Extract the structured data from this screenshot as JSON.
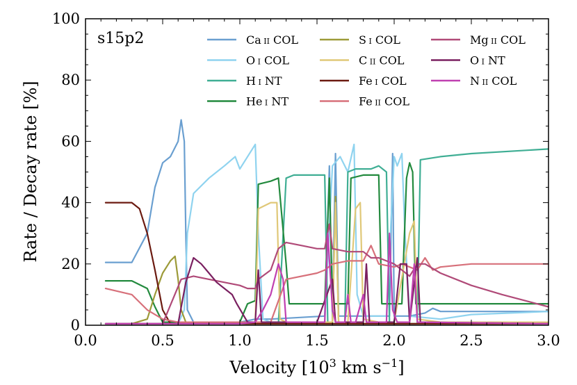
{
  "chart_data": {
    "type": "line",
    "model_label": "s15p2",
    "xlabel": "Velocity [10³ km s⁻¹]",
    "ylabel": "Rate / Decay rate [%]",
    "xlim": [
      0.0,
      3.0
    ],
    "ylim": [
      0,
      100
    ],
    "x_ticks": [
      "0.0",
      "0.5",
      "1.0",
      "1.5",
      "2.0",
      "2.5",
      "3.0"
    ],
    "y_ticks": [
      "0",
      "20",
      "40",
      "60",
      "80",
      "100"
    ],
    "legend_position": "top",
    "series": [
      {
        "name": "Ca II COL",
        "color": "#6a9fd0",
        "points": [
          [
            0.13,
            20.5
          ],
          [
            0.3,
            20.5
          ],
          [
            0.4,
            30
          ],
          [
            0.45,
            45
          ],
          [
            0.5,
            53
          ],
          [
            0.55,
            55
          ],
          [
            0.6,
            60
          ],
          [
            0.62,
            67
          ],
          [
            0.64,
            60
          ],
          [
            0.65,
            30
          ],
          [
            0.66,
            5
          ],
          [
            0.7,
            1
          ],
          [
            1.0,
            1
          ],
          [
            1.05,
            1.5
          ],
          [
            1.1,
            2
          ],
          [
            1.2,
            2
          ],
          [
            1.55,
            3
          ],
          [
            1.58,
            52
          ],
          [
            1.6,
            2
          ],
          [
            1.62,
            56
          ],
          [
            1.64,
            3
          ],
          [
            1.7,
            3
          ],
          [
            1.97,
            3
          ],
          [
            1.99,
            56
          ],
          [
            2.0,
            3
          ],
          [
            2.06,
            3
          ],
          [
            2.1,
            3
          ],
          [
            2.2,
            4
          ],
          [
            2.25,
            5.5
          ],
          [
            2.3,
            4.5
          ],
          [
            2.5,
            4.5
          ],
          [
            3.0,
            4.5
          ]
        ]
      },
      {
        "name": "O I COL",
        "color": "#8fd3ef",
        "points": [
          [
            0.13,
            0.5
          ],
          [
            0.6,
            0.5
          ],
          [
            0.64,
            5
          ],
          [
            0.66,
            30
          ],
          [
            0.7,
            43
          ],
          [
            0.8,
            48
          ],
          [
            0.9,
            52
          ],
          [
            0.97,
            55
          ],
          [
            1.0,
            51
          ],
          [
            1.05,
            55
          ],
          [
            1.1,
            59
          ],
          [
            1.12,
            30
          ],
          [
            1.15,
            2
          ],
          [
            1.2,
            1
          ],
          [
            1.55,
            1
          ],
          [
            1.6,
            52
          ],
          [
            1.65,
            55
          ],
          [
            1.7,
            50
          ],
          [
            1.74,
            59
          ],
          [
            1.76,
            10
          ],
          [
            1.8,
            3
          ],
          [
            1.95,
            3
          ],
          [
            2.0,
            55
          ],
          [
            2.02,
            52
          ],
          [
            2.05,
            56
          ],
          [
            2.07,
            30
          ],
          [
            2.1,
            3
          ],
          [
            2.3,
            2
          ],
          [
            2.5,
            3.5
          ],
          [
            3.0,
            4.5
          ]
        ]
      },
      {
        "name": "H I NT",
        "color": "#3fae94",
        "points": [
          [
            0.13,
            0.5
          ],
          [
            1.25,
            0.5
          ],
          [
            1.3,
            48
          ],
          [
            1.35,
            49
          ],
          [
            1.55,
            49
          ],
          [
            1.57,
            0.5
          ],
          [
            1.68,
            0.5
          ],
          [
            1.7,
            50
          ],
          [
            1.75,
            51
          ],
          [
            1.85,
            51
          ],
          [
            1.9,
            52
          ],
          [
            1.95,
            50
          ],
          [
            1.97,
            0.5
          ],
          [
            2.15,
            0.5
          ],
          [
            2.17,
            54
          ],
          [
            2.3,
            55
          ],
          [
            2.5,
            56
          ],
          [
            3.0,
            57.5
          ]
        ]
      },
      {
        "name": "He I NT",
        "color": "#238a3e",
        "points": [
          [
            0.13,
            14.5
          ],
          [
            0.3,
            14.5
          ],
          [
            0.4,
            12
          ],
          [
            0.45,
            6
          ],
          [
            0.5,
            1
          ],
          [
            0.6,
            1
          ],
          [
            1.0,
            1
          ],
          [
            1.05,
            7
          ],
          [
            1.1,
            8
          ],
          [
            1.12,
            46
          ],
          [
            1.2,
            47
          ],
          [
            1.25,
            48
          ],
          [
            1.3,
            20
          ],
          [
            1.32,
            7
          ],
          [
            1.5,
            7
          ],
          [
            1.55,
            7
          ],
          [
            1.58,
            48
          ],
          [
            1.6,
            7
          ],
          [
            1.65,
            7
          ],
          [
            1.7,
            7
          ],
          [
            1.72,
            48
          ],
          [
            1.8,
            49
          ],
          [
            1.9,
            49
          ],
          [
            1.92,
            7
          ],
          [
            2.0,
            7
          ],
          [
            2.05,
            7
          ],
          [
            2.08,
            48
          ],
          [
            2.1,
            53
          ],
          [
            2.12,
            50
          ],
          [
            2.14,
            7
          ],
          [
            2.3,
            7
          ],
          [
            3.0,
            7
          ]
        ]
      },
      {
        "name": "S I COL",
        "color": "#9c9a38",
        "points": [
          [
            0.13,
            0.5
          ],
          [
            0.3,
            0.5
          ],
          [
            0.4,
            2
          ],
          [
            0.45,
            10
          ],
          [
            0.5,
            17
          ],
          [
            0.55,
            21
          ],
          [
            0.58,
            22.5
          ],
          [
            0.6,
            15
          ],
          [
            0.62,
            5
          ],
          [
            0.65,
            1
          ],
          [
            1.0,
            0.5
          ],
          [
            1.6,
            0.5
          ],
          [
            1.62,
            42
          ],
          [
            1.64,
            0.5
          ],
          [
            3.0,
            0.5
          ]
        ]
      },
      {
        "name": "C II COL",
        "color": "#e0c878",
        "points": [
          [
            0.13,
            0.5
          ],
          [
            0.6,
            0.5
          ],
          [
            0.7,
            1
          ],
          [
            1.0,
            1
          ],
          [
            1.1,
            1
          ],
          [
            1.12,
            38
          ],
          [
            1.2,
            40
          ],
          [
            1.24,
            40
          ],
          [
            1.26,
            2
          ],
          [
            1.3,
            1
          ],
          [
            1.6,
            1
          ],
          [
            1.62,
            40
          ],
          [
            1.64,
            1
          ],
          [
            1.7,
            1
          ],
          [
            1.75,
            38
          ],
          [
            1.78,
            40
          ],
          [
            1.8,
            2
          ],
          [
            1.9,
            1
          ],
          [
            2.0,
            1
          ],
          [
            2.1,
            30
          ],
          [
            2.13,
            34
          ],
          [
            2.15,
            2
          ],
          [
            2.3,
            1
          ],
          [
            3.0,
            1
          ]
        ]
      },
      {
        "name": "Fe I COL",
        "color": "#6b1a10",
        "points": [
          [
            0.13,
            40
          ],
          [
            0.2,
            40
          ],
          [
            0.3,
            40
          ],
          [
            0.35,
            38
          ],
          [
            0.4,
            30
          ],
          [
            0.45,
            18
          ],
          [
            0.5,
            5
          ],
          [
            0.55,
            0.5
          ],
          [
            3.0,
            0.5
          ]
        ]
      },
      {
        "name": "Fe II COL",
        "color": "#d7707a",
        "points": [
          [
            0.13,
            12
          ],
          [
            0.3,
            10
          ],
          [
            0.4,
            5
          ],
          [
            0.5,
            2
          ],
          [
            0.6,
            1
          ],
          [
            1.0,
            1
          ],
          [
            1.1,
            1
          ],
          [
            1.2,
            1
          ],
          [
            1.3,
            15
          ],
          [
            1.5,
            17
          ],
          [
            1.55,
            18
          ],
          [
            1.6,
            20
          ],
          [
            1.7,
            21
          ],
          [
            1.8,
            21
          ],
          [
            1.85,
            26
          ],
          [
            1.9,
            20
          ],
          [
            2.0,
            19
          ],
          [
            2.05,
            20
          ],
          [
            2.1,
            19
          ],
          [
            2.15,
            18
          ],
          [
            2.2,
            22
          ],
          [
            2.25,
            18
          ],
          [
            2.3,
            19
          ],
          [
            2.5,
            20
          ],
          [
            3.0,
            20
          ]
        ]
      },
      {
        "name": "Mg II COL",
        "color": "#b04a78",
        "points": [
          [
            0.13,
            0.5
          ],
          [
            0.5,
            0.5
          ],
          [
            0.62,
            15
          ],
          [
            0.7,
            16
          ],
          [
            0.8,
            15
          ],
          [
            0.9,
            14
          ],
          [
            1.0,
            13
          ],
          [
            1.05,
            12
          ],
          [
            1.1,
            12
          ],
          [
            1.12,
            15
          ],
          [
            1.2,
            18
          ],
          [
            1.25,
            25
          ],
          [
            1.3,
            27
          ],
          [
            1.4,
            26
          ],
          [
            1.5,
            25
          ],
          [
            1.55,
            25
          ],
          [
            1.58,
            33
          ],
          [
            1.6,
            25
          ],
          [
            1.7,
            24
          ],
          [
            1.8,
            24
          ],
          [
            1.85,
            22
          ],
          [
            1.9,
            22
          ],
          [
            1.95,
            21
          ],
          [
            2.0,
            20
          ],
          [
            2.05,
            18
          ],
          [
            2.1,
            16
          ],
          [
            2.15,
            20
          ],
          [
            2.2,
            20
          ],
          [
            2.3,
            17
          ],
          [
            2.5,
            13
          ],
          [
            2.7,
            10
          ],
          [
            3.0,
            6
          ]
        ]
      },
      {
        "name": "O I NT",
        "color": "#7a2060",
        "points": [
          [
            0.13,
            0.5
          ],
          [
            0.6,
            0.5
          ],
          [
            0.65,
            14
          ],
          [
            0.7,
            22
          ],
          [
            0.75,
            20
          ],
          [
            0.8,
            17
          ],
          [
            0.85,
            14
          ],
          [
            0.9,
            12
          ],
          [
            0.95,
            10
          ],
          [
            0.98,
            7
          ],
          [
            1.05,
            1
          ],
          [
            1.1,
            1
          ],
          [
            1.12,
            18
          ],
          [
            1.14,
            1
          ],
          [
            1.5,
            1
          ],
          [
            1.6,
            15
          ],
          [
            1.62,
            1
          ],
          [
            1.8,
            1
          ],
          [
            1.82,
            20
          ],
          [
            1.84,
            1
          ],
          [
            2.0,
            1
          ],
          [
            2.04,
            20
          ],
          [
            2.08,
            20
          ],
          [
            2.1,
            1
          ],
          [
            2.15,
            22
          ],
          [
            2.17,
            1
          ],
          [
            3.0,
            0.5
          ]
        ]
      },
      {
        "name": "N II COL",
        "color": "#c040b0",
        "points": [
          [
            0.13,
            0.5
          ],
          [
            1.0,
            0.5
          ],
          [
            1.1,
            1
          ],
          [
            1.15,
            5
          ],
          [
            1.2,
            10
          ],
          [
            1.25,
            20
          ],
          [
            1.28,
            15
          ],
          [
            1.3,
            1
          ],
          [
            1.55,
            1
          ],
          [
            1.57,
            30
          ],
          [
            1.6,
            5
          ],
          [
            1.62,
            1
          ],
          [
            1.68,
            1
          ],
          [
            1.7,
            10
          ],
          [
            1.72,
            1
          ],
          [
            1.75,
            1
          ],
          [
            1.8,
            10
          ],
          [
            1.82,
            1
          ],
          [
            1.95,
            1
          ],
          [
            1.97,
            30
          ],
          [
            1.99,
            5
          ],
          [
            2.02,
            1
          ],
          [
            2.1,
            1
          ],
          [
            2.13,
            20
          ],
          [
            2.15,
            1
          ],
          [
            3.0,
            0.5
          ]
        ]
      }
    ]
  }
}
